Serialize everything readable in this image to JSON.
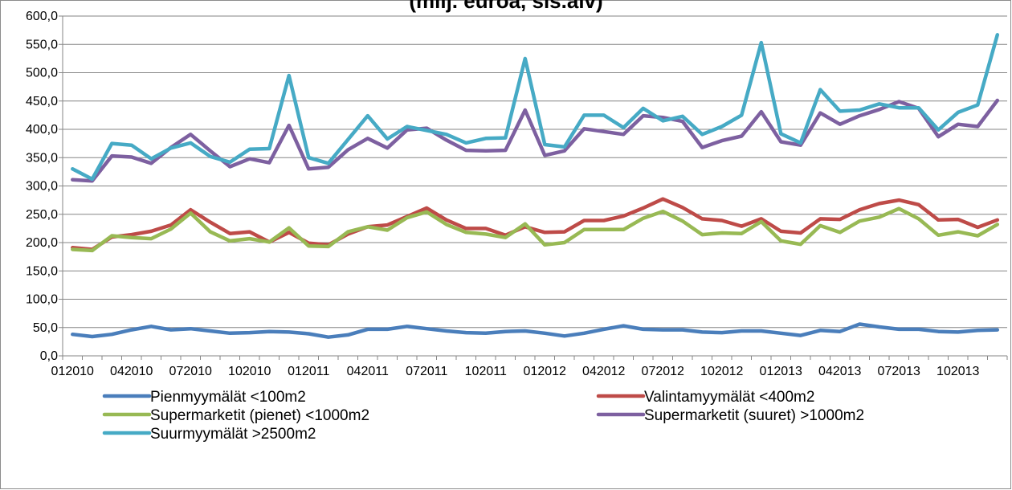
{
  "chart_data": {
    "type": "line",
    "title": "(milj. euroa, sis.alv)",
    "xlabel": "",
    "ylabel": "",
    "ylim": [
      0,
      600
    ],
    "y_ticks": [
      "0,0",
      "50,0",
      "100,0",
      "150,0",
      "200,0",
      "250,0",
      "300,0",
      "350,0",
      "400,0",
      "450,0",
      "500,0",
      "550,0",
      "600,0"
    ],
    "x_tick_labels": [
      "012010",
      "042010",
      "072010",
      "102010",
      "012011",
      "042011",
      "072011",
      "102011",
      "012012",
      "042012",
      "072012",
      "102012",
      "012013",
      "042013",
      "072013",
      "102013"
    ],
    "x_tick_every": 3,
    "grid": "horizontal",
    "legend_position": "bottom",
    "series": [
      {
        "name": "Pienmyymälät  <100m2",
        "color": "#4a7ebb",
        "values": [
          38,
          34,
          38,
          46,
          52,
          46,
          48,
          44,
          40,
          41,
          43,
          42,
          39,
          33,
          37,
          47,
          47,
          52,
          48,
          44,
          41,
          40,
          43,
          44,
          40,
          35,
          40,
          47,
          53,
          47,
          46,
          46,
          42,
          41,
          44,
          44,
          40,
          36,
          45,
          43,
          56,
          51,
          47,
          47,
          43,
          42,
          45,
          46
        ]
      },
      {
        "name": "Valintamyymälät <400m2",
        "color": "#be4b48",
        "values": [
          191,
          188,
          210,
          214,
          220,
          231,
          258,
          236,
          216,
          219,
          201,
          218,
          199,
          196,
          215,
          228,
          231,
          246,
          261,
          240,
          225,
          225,
          213,
          228,
          218,
          219,
          239,
          239,
          247,
          261,
          277,
          262,
          242,
          239,
          229,
          242,
          220,
          217,
          242,
          241,
          258,
          269,
          275,
          267,
          240,
          241,
          227,
          240
        ]
      },
      {
        "name": "Supermarketit (pienet) <1000m2",
        "color": "#98b954",
        "values": [
          188,
          186,
          212,
          209,
          207,
          224,
          252,
          219,
          203,
          207,
          201,
          226,
          194,
          193,
          219,
          228,
          222,
          244,
          254,
          232,
          218,
          215,
          209,
          233,
          196,
          200,
          223,
          223,
          223,
          243,
          255,
          238,
          214,
          217,
          216,
          237,
          203,
          197,
          230,
          218,
          238,
          245,
          260,
          242,
          213,
          219,
          212,
          232
        ]
      },
      {
        "name": "Supermarketit (suuret) >1000m2",
        "color": "#7d60a0",
        "values": [
          311,
          309,
          353,
          351,
          340,
          368,
          391,
          362,
          334,
          348,
          341,
          407,
          330,
          333,
          364,
          384,
          367,
          399,
          402,
          381,
          363,
          362,
          363,
          434,
          354,
          362,
          401,
          396,
          391,
          424,
          421,
          414,
          368,
          380,
          388,
          431,
          378,
          372,
          429,
          409,
          424,
          435,
          449,
          437,
          387,
          409,
          405,
          451
        ]
      },
      {
        "name": "Suurmyymälät >2500m2",
        "color": "#46aac5",
        "values": [
          330,
          312,
          375,
          372,
          348,
          367,
          376,
          352,
          342,
          365,
          366,
          495,
          350,
          340,
          382,
          424,
          383,
          405,
          398,
          391,
          376,
          384,
          385,
          525,
          373,
          369,
          425,
          425,
          403,
          437,
          415,
          423,
          391,
          405,
          425,
          553,
          392,
          376,
          470,
          432,
          434,
          445,
          438,
          438,
          399,
          430,
          443,
          567
        ]
      }
    ]
  }
}
